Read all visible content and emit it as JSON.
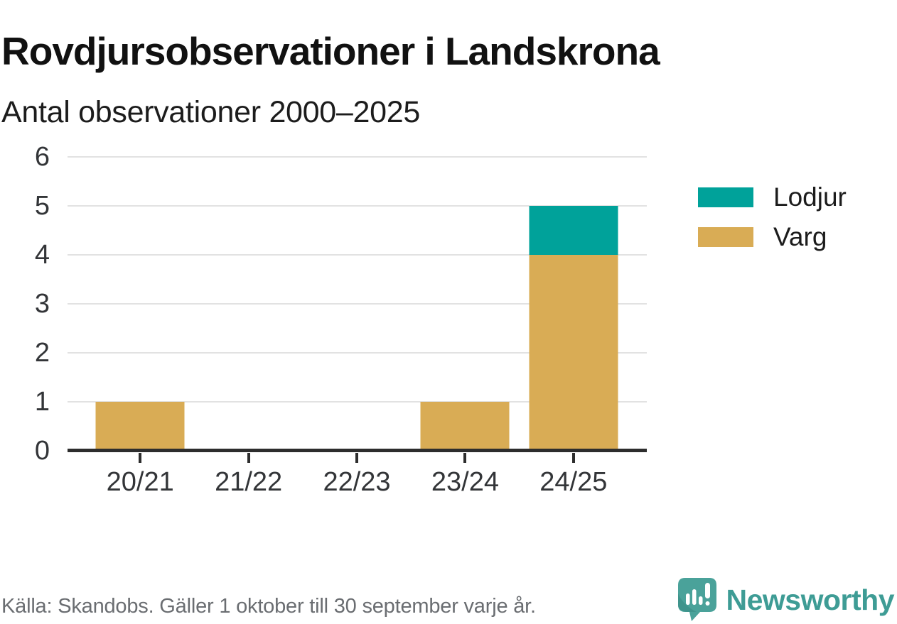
{
  "header": {
    "title": "Rovdjursobservationer i Landskrona",
    "subtitle": "Antal observationer 2000–2025"
  },
  "chart_data": {
    "type": "bar",
    "stacked": true,
    "title": "Rovdjursobservationer i Landskrona",
    "subtitle": "Antal observationer 2000–2025",
    "categories": [
      "20/21",
      "21/22",
      "22/23",
      "23/24",
      "24/25"
    ],
    "series": [
      {
        "name": "Lodjur",
        "color": "#00a29a",
        "values": [
          0,
          0,
          0,
          0,
          1
        ]
      },
      {
        "name": "Varg",
        "color": "#d9ac55",
        "values": [
          1,
          0,
          0,
          1,
          4
        ]
      }
    ],
    "stack_order_bottom_to_top": [
      "Varg",
      "Lodjur"
    ],
    "ylim": [
      0,
      6
    ],
    "yticks": [
      0,
      1,
      2,
      3,
      4,
      5,
      6
    ],
    "xlabel": "",
    "ylabel": "",
    "grid": true,
    "legend_position": "right"
  },
  "footer": {
    "source": "Källa: Skandobs. Gäller 1 oktober till 30 september varje år."
  },
  "branding": {
    "name": "Newsworthy",
    "logo_icon": "speech-bubble-bar-chart-icon",
    "color": "#3e9c95"
  },
  "colors": {
    "lodjur": "#00a29a",
    "varg": "#d9ac55",
    "axis": "#2d2d2d",
    "grid": "#e2e2e2",
    "text": "#333538",
    "muted": "#6a6d71"
  }
}
